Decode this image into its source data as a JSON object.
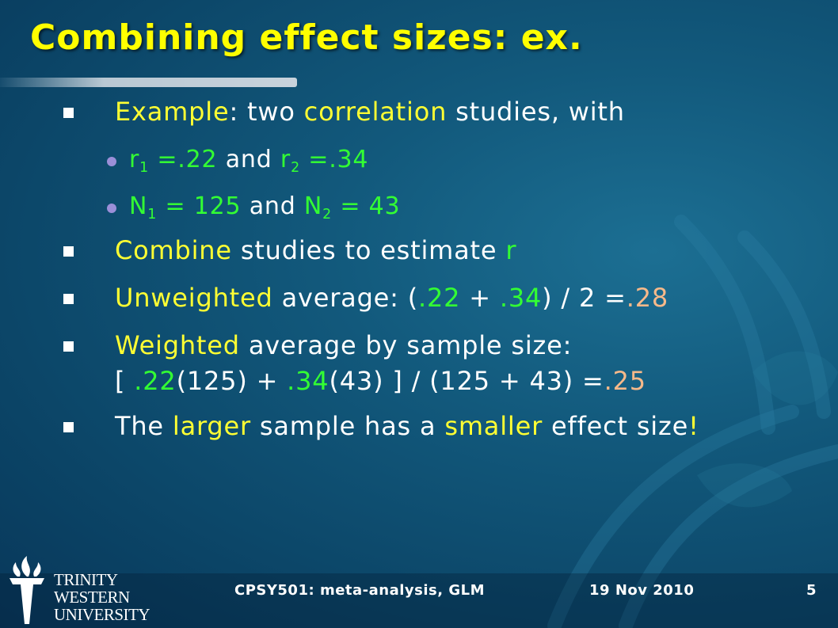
{
  "slide": {
    "title": "Combining effect sizes: ex."
  },
  "bullets": {
    "example": {
      "word": "Example",
      "colon": ":",
      "text1": " two ",
      "corr": "correlation",
      "text2": " studies, with"
    },
    "sub_r": {
      "r": "r",
      "r_sub": "1",
      "r1_val": " =.22",
      "and": " and ",
      "r2": "r",
      "r2_sub": "2",
      "r2_val": " =.34"
    },
    "sub_n": {
      "n": "N",
      "n_sub": "1",
      "n1_val": " = 125",
      "and": " and ",
      "n2": "N",
      "n2_sub": "2",
      "n2_val": " = 43"
    },
    "combine": {
      "word": "Combine",
      "text": " studies to estimate ",
      "r": "r"
    },
    "unweighted": {
      "word": "Unweighted",
      "text1": " average: (",
      "v1": ".22",
      "plus": " + ",
      "v2": ".34",
      "text2": ") / 2 =",
      "result": ".28"
    },
    "weighted": {
      "word": "Weighted",
      "line1_rest": " average by sample size:",
      "bracket_open": "[ ",
      "v1": ".22",
      "p1": "(125) + ",
      "v2": ".34",
      "p2": "(43) ] / (125 + 43) =",
      "result": ".25"
    },
    "larger": {
      "the": "The ",
      "larger": "larger",
      "mid": " sample has a ",
      "smaller": "smaller",
      "end1": " effect size",
      "bang": "!"
    }
  },
  "footer": {
    "logo_line1": "TRINITY",
    "logo_line2": "WESTERN",
    "logo_line3": "UNIVERSITY",
    "course": "CPSY501: meta-analysis, GLM",
    "date": "19 Nov 2010",
    "page_number": "5"
  },
  "colors": {
    "title": "#ffff00",
    "highlight_yellow": "#ffff33",
    "highlight_green": "#33ff33",
    "highlight_orange": "#f6b98a",
    "sub_bullet": "#9b8fd8",
    "background": "#12597c"
  }
}
